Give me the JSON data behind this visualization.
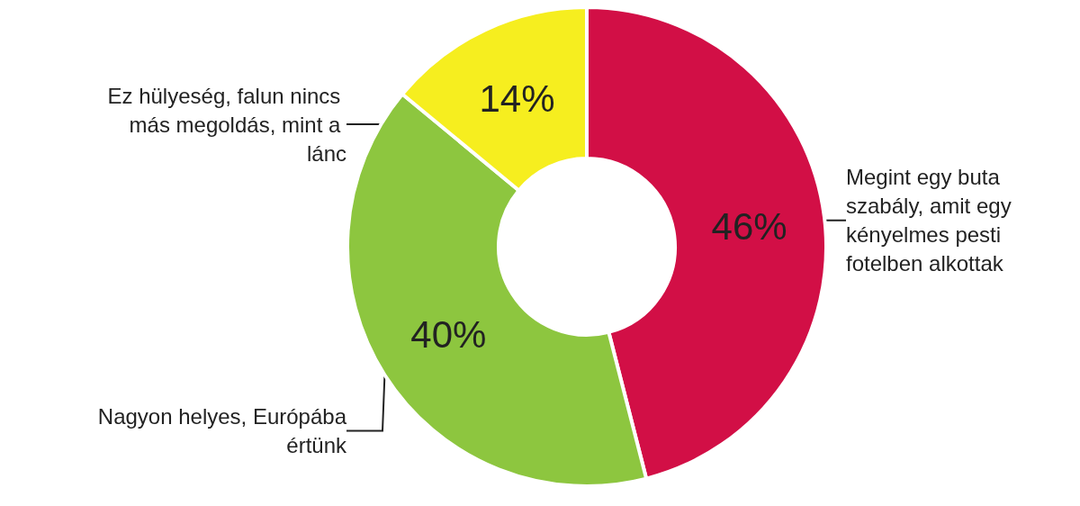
{
  "chart_data": {
    "type": "donut",
    "categories": [
      "Megint egy buta szabály, amit egy kényelmes pesti fotelben alkottak",
      "Nagyon helyes, Európába értünk",
      "Ez hülyeség, falun nincs más megoldás, mint a lánc"
    ],
    "values": [
      46,
      40,
      14
    ],
    "value_labels": [
      "46%",
      "40%",
      "14%"
    ],
    "colors": [
      "#d20f46",
      "#8dc63f",
      "#f6ee1f"
    ],
    "legend": false
  }
}
